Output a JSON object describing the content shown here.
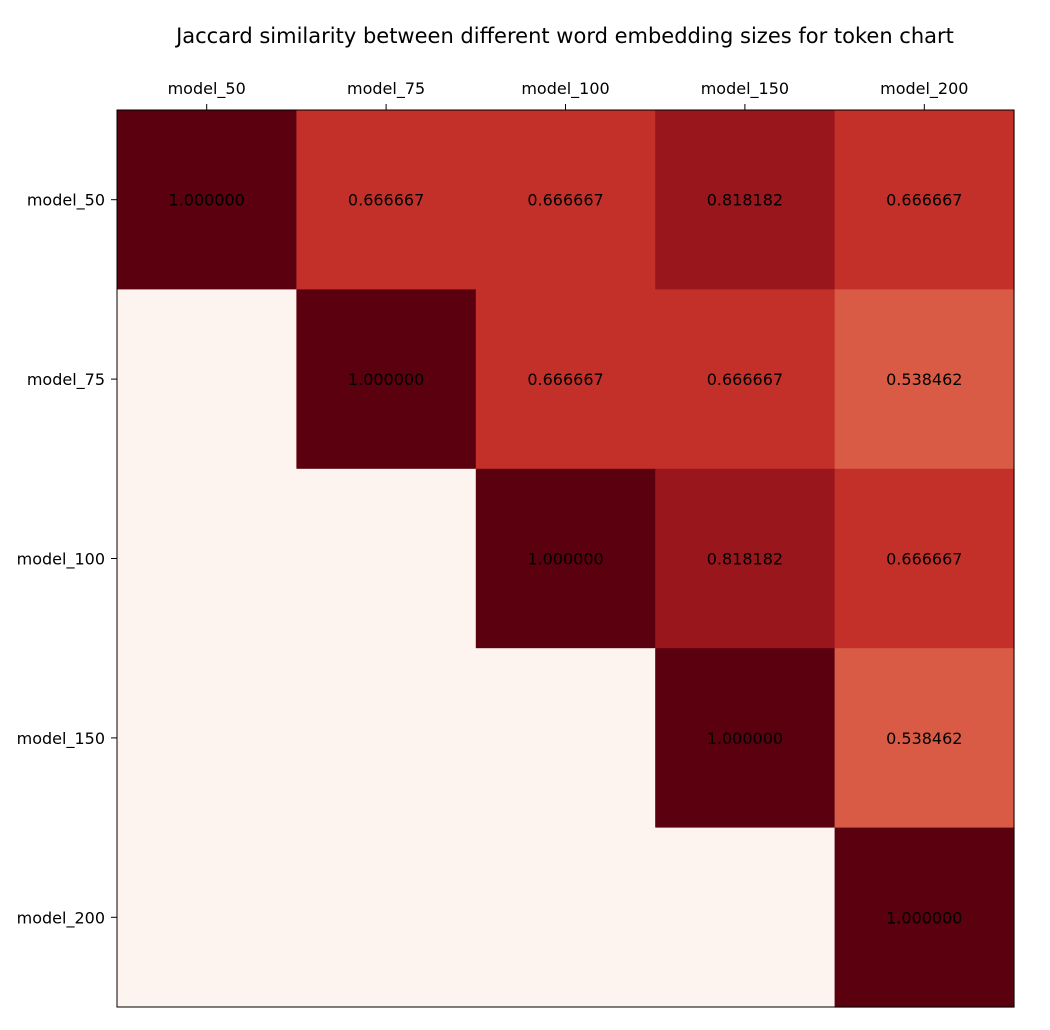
{
  "chart_data": {
    "type": "heatmap",
    "title": "Jaccard similarity between different word embedding sizes for token chart",
    "x_categories": [
      "model_50",
      "model_75",
      "model_100",
      "model_150",
      "model_200"
    ],
    "y_categories": [
      "model_50",
      "model_75",
      "model_100",
      "model_150",
      "model_200"
    ],
    "x_tick_position": "top",
    "colormap": "Reds",
    "value_range": [
      0,
      1
    ],
    "grid": false,
    "values": [
      [
        1.0,
        0.666667,
        0.666667,
        0.818182,
        0.666667
      ],
      [
        null,
        1.0,
        0.666667,
        0.666667,
        0.538462
      ],
      [
        null,
        null,
        1.0,
        0.818182,
        0.666667
      ],
      [
        null,
        null,
        null,
        1.0,
        0.538462
      ],
      [
        null,
        null,
        null,
        null,
        1.0
      ]
    ],
    "labels": [
      [
        "1.000000",
        "0.666667",
        "0.666667",
        "0.818182",
        "0.666667"
      ],
      [
        "",
        "1.000000",
        "0.666667",
        "0.666667",
        "0.538462"
      ],
      [
        "",
        "",
        "1.000000",
        "0.818182",
        "0.666667"
      ],
      [
        "",
        "",
        "",
        "1.000000",
        "0.538462"
      ],
      [
        "",
        "",
        "",
        "",
        "1.000000"
      ]
    ],
    "empty_color": "#fdf3ef",
    "colors": {
      "1.0": "#5a000e",
      "0.818182": "#99161d",
      "0.666667": "#c3302a",
      "0.538462": "#d95a45"
    }
  }
}
